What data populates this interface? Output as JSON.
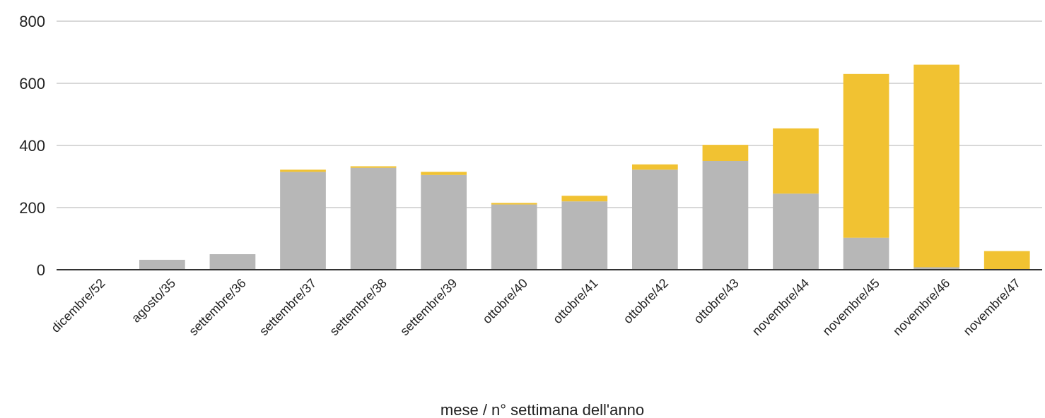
{
  "chart_data": {
    "type": "bar",
    "stacked": true,
    "title": "",
    "xlabel": "mese / n° settimana dell'anno",
    "ylabel": "",
    "ylim": [
      0,
      800
    ],
    "yticks": [
      0,
      200,
      400,
      600,
      800
    ],
    "grid": true,
    "legend": "none",
    "categories": [
      "dicembre/52",
      "agosto/35",
      "settembre/36",
      "settembre/37",
      "settembre/38",
      "settembre/39",
      "ottobre/40",
      "ottobre/41",
      "ottobre/42",
      "ottobre/43",
      "novembre/44",
      "novembre/45",
      "novembre/46",
      "novembre/47"
    ],
    "series": [
      {
        "color": "#b7b7b7",
        "values": [
          0,
          32,
          50,
          315,
          328,
          305,
          210,
          220,
          322,
          350,
          245,
          103,
          8,
          2
        ]
      },
      {
        "color": "#f1c232",
        "values": [
          0,
          0,
          0,
          7,
          5,
          10,
          5,
          18,
          17,
          52,
          210,
          527,
          652,
          58
        ]
      }
    ]
  }
}
